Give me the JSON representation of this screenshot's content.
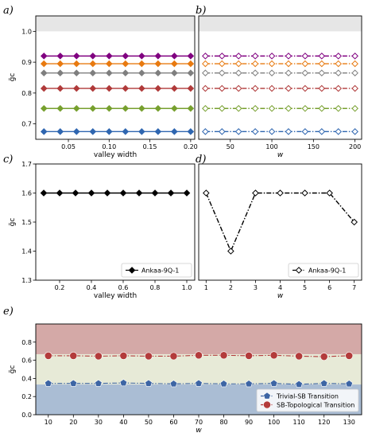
{
  "chart_data": [
    {
      "panel": "a)",
      "type": "line",
      "xlabel": "valley width",
      "ylabel": "g̃c",
      "xlim": [
        0.01,
        0.205
      ],
      "ylim": [
        0.65,
        1.05
      ],
      "xticks": [
        0.05,
        0.1,
        0.15,
        0.2
      ],
      "xtick_labels": [
        "0.05",
        "0.10",
        "0.15",
        "0.20"
      ],
      "yticks": [
        0.7,
        0.8,
        0.9,
        1.0
      ],
      "ytick_labels": [
        "0.7",
        "0.8",
        "0.9",
        "1.0"
      ],
      "shaded_band": [
        1.0,
        1.05
      ],
      "x": [
        0.02,
        0.04,
        0.06,
        0.08,
        0.1,
        0.12,
        0.14,
        0.16,
        0.18,
        0.2
      ],
      "series": [
        {
          "values": [
            0.92,
            0.92,
            0.92,
            0.92,
            0.92,
            0.92,
            0.92,
            0.92,
            0.92,
            0.92
          ],
          "color": "#800080"
        },
        {
          "values": [
            0.895,
            0.895,
            0.895,
            0.895,
            0.895,
            0.895,
            0.895,
            0.895,
            0.895,
            0.895
          ],
          "color": "#e87a10"
        },
        {
          "values": [
            0.865,
            0.865,
            0.865,
            0.865,
            0.865,
            0.865,
            0.865,
            0.865,
            0.865,
            0.865
          ],
          "color": "#7f7f7f"
        },
        {
          "values": [
            0.815,
            0.815,
            0.815,
            0.815,
            0.815,
            0.815,
            0.815,
            0.815,
            0.815,
            0.815
          ],
          "color": "#b03a3a"
        },
        {
          "values": [
            0.75,
            0.75,
            0.75,
            0.75,
            0.75,
            0.75,
            0.75,
            0.75,
            0.75,
            0.75
          ],
          "color": "#77a02f"
        },
        {
          "values": [
            0.675,
            0.675,
            0.675,
            0.675,
            0.675,
            0.675,
            0.675,
            0.675,
            0.675,
            0.675
          ],
          "color": "#2f66b0"
        }
      ],
      "grid": false,
      "legend": null
    },
    {
      "panel": "b)",
      "type": "line",
      "xlabel": "w",
      "ylabel": "",
      "xlim": [
        12,
        208
      ],
      "ylim": [
        0.65,
        1.05
      ],
      "xticks": [
        50,
        100,
        150,
        200
      ],
      "xtick_labels": [
        "50",
        "100",
        "150",
        "200"
      ],
      "shaded_band": [
        1.0,
        1.05
      ],
      "x": [
        20,
        40,
        60,
        80,
        100,
        120,
        140,
        160,
        180,
        200
      ],
      "series": [
        {
          "values": [
            0.92,
            0.92,
            0.92,
            0.92,
            0.92,
            0.92,
            0.92,
            0.92,
            0.92,
            0.92
          ],
          "color": "#800080"
        },
        {
          "values": [
            0.895,
            0.895,
            0.895,
            0.895,
            0.895,
            0.895,
            0.895,
            0.895,
            0.895,
            0.895
          ],
          "color": "#e87a10"
        },
        {
          "values": [
            0.865,
            0.865,
            0.865,
            0.865,
            0.865,
            0.865,
            0.865,
            0.865,
            0.865,
            0.865
          ],
          "color": "#7f7f7f"
        },
        {
          "values": [
            0.815,
            0.815,
            0.815,
            0.815,
            0.815,
            0.815,
            0.815,
            0.815,
            0.815,
            0.815
          ],
          "color": "#b03a3a"
        },
        {
          "values": [
            0.75,
            0.75,
            0.75,
            0.75,
            0.75,
            0.75,
            0.75,
            0.75,
            0.75,
            0.75
          ],
          "color": "#77a02f"
        },
        {
          "values": [
            0.675,
            0.675,
            0.675,
            0.675,
            0.675,
            0.675,
            0.675,
            0.675,
            0.675,
            0.675
          ],
          "color": "#2f66b0"
        }
      ],
      "marker": "open-diamond",
      "linestyle": "dash-dot",
      "grid": false,
      "legend": null
    },
    {
      "panel": "c)",
      "type": "line",
      "xlabel": "valley width",
      "ylabel": "g̃c",
      "xlim": [
        0.05,
        1.05
      ],
      "ylim": [
        1.3,
        1.7
      ],
      "xticks": [
        0.2,
        0.4,
        0.6,
        0.8,
        1.0
      ],
      "xtick_labels": [
        "0.2",
        "0.4",
        "0.6",
        "0.8",
        "1.0"
      ],
      "yticks": [
        1.3,
        1.4,
        1.5,
        1.6,
        1.7
      ],
      "ytick_labels": [
        "1.3",
        "1.4",
        "1.5",
        "1.6",
        "1.7"
      ],
      "x": [
        0.1,
        0.2,
        0.3,
        0.4,
        0.5,
        0.6,
        0.7,
        0.8,
        0.9,
        1.0
      ],
      "series": [
        {
          "name": "Ankaa-9Q-1",
          "values": [
            1.6,
            1.6,
            1.6,
            1.6,
            1.6,
            1.6,
            1.6,
            1.6,
            1.6,
            1.6
          ],
          "color": "#000000"
        }
      ],
      "marker": "filled-diamond",
      "linestyle": "solid",
      "grid": false,
      "legend": "lower-right"
    },
    {
      "panel": "d)",
      "type": "line",
      "xlabel": "w",
      "ylabel": "",
      "xlim": [
        0.7,
        7.3
      ],
      "ylim": [
        1.3,
        1.7
      ],
      "xticks": [
        1,
        2,
        3,
        4,
        5,
        6,
        7
      ],
      "xtick_labels": [
        "1",
        "2",
        "3",
        "4",
        "5",
        "6",
        "7"
      ],
      "x": [
        1,
        2,
        3,
        4,
        5,
        6,
        7
      ],
      "series": [
        {
          "name": "Ankaa-9Q-1",
          "values": [
            1.6,
            1.4,
            1.6,
            1.6,
            1.6,
            1.6,
            1.5
          ],
          "color": "#000000"
        }
      ],
      "marker": "open-diamond",
      "linestyle": "dash-dot",
      "grid": false,
      "legend": "lower-right"
    },
    {
      "panel": "e)",
      "type": "line",
      "xlabel": "w",
      "ylabel": "g̃c",
      "xlim": [
        5,
        135
      ],
      "ylim": [
        0.0,
        1.0
      ],
      "xticks": [
        10,
        20,
        30,
        40,
        50,
        60,
        70,
        80,
        90,
        100,
        110,
        120,
        130
      ],
      "xtick_labels": [
        "10",
        "20",
        "30",
        "40",
        "50",
        "60",
        "70",
        "80",
        "90",
        "100",
        "110",
        "120",
        "130"
      ],
      "yticks": [
        0.0,
        0.2,
        0.4,
        0.6,
        0.8
      ],
      "ytick_labels": [
        "0.0",
        "0.2",
        "0.4",
        "0.6",
        "0.8"
      ],
      "bands": [
        {
          "from": 0.0,
          "to": 0.333,
          "color": "#aabdd4"
        },
        {
          "from": 0.333,
          "to": 0.667,
          "color": "#e7ead7"
        },
        {
          "from": 0.667,
          "to": 1.0,
          "color": "#d4a9a7"
        }
      ],
      "x": [
        10,
        20,
        30,
        40,
        50,
        60,
        70,
        80,
        90,
        100,
        110,
        120,
        130
      ],
      "series": [
        {
          "name": "Trivial-SB Transition",
          "values": [
            0.345,
            0.345,
            0.345,
            0.35,
            0.345,
            0.34,
            0.345,
            0.34,
            0.34,
            0.345,
            0.335,
            0.345,
            0.34
          ],
          "color": "#3d65a4",
          "marker": "pentagon"
        },
        {
          "name": "SB-Topological Transition",
          "values": [
            0.65,
            0.65,
            0.645,
            0.65,
            0.645,
            0.645,
            0.655,
            0.655,
            0.65,
            0.655,
            0.645,
            0.64,
            0.65
          ],
          "color": "#b33b3b",
          "marker": "circle"
        }
      ],
      "linestyle": "dash-dot",
      "grid": false,
      "legend": "lower-right"
    }
  ]
}
